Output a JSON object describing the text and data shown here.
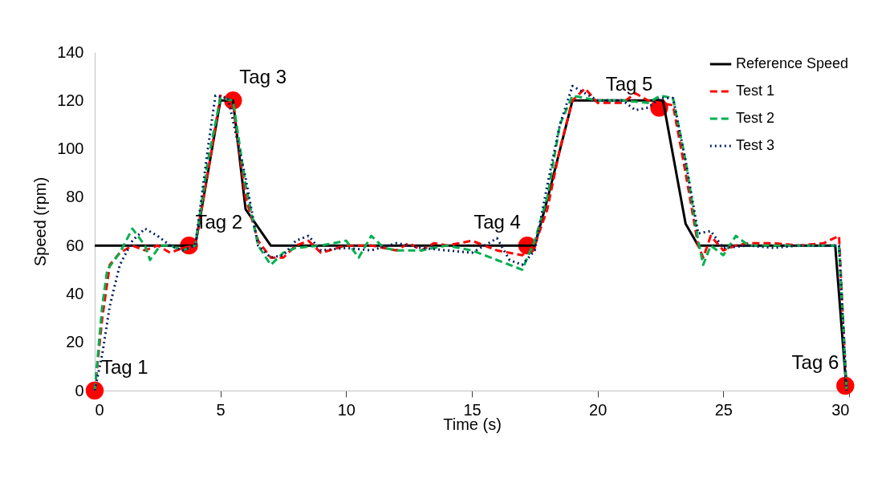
{
  "chart_data": {
    "type": "line",
    "xlabel": "Time (s)",
    "ylabel": "Speed (rpm)",
    "xlim": [
      0,
      30
    ],
    "xticks": [
      0,
      5,
      10,
      15,
      20,
      25,
      30
    ],
    "ylim": [
      0,
      140
    ],
    "yticks": [
      0,
      20,
      40,
      60,
      80,
      100,
      120,
      140
    ],
    "grid": false,
    "legend": "top right",
    "marker": "none",
    "series": [
      {
        "name": "Reference Speed",
        "color": "#000000",
        "line_style": "solid",
        "x": [
          0,
          4,
          5,
          5.5,
          6,
          7,
          17.5,
          18,
          19,
          22.6,
          23.5,
          24,
          29.45,
          29.9
        ],
        "values": [
          60,
          60,
          120,
          120,
          75,
          60,
          60,
          79,
          120,
          120,
          69,
          60,
          60,
          0
        ]
      },
      {
        "name": "Test 1",
        "color": "#ff0000",
        "line_style": "dashed",
        "x": [
          0,
          0.3,
          0.6,
          1,
          1.5,
          2,
          2.5,
          3,
          3.5,
          4,
          4.5,
          5,
          5.5,
          6,
          6.5,
          7,
          7.5,
          8,
          8.5,
          9,
          10,
          11,
          12,
          12.5,
          13,
          13.5,
          14,
          15,
          16,
          16.5,
          17,
          17.5,
          18,
          18.5,
          19,
          19.5,
          20,
          21,
          21.5,
          22,
          22.5,
          23,
          23.5,
          24,
          24.2,
          24.5,
          25,
          25.5,
          26,
          27,
          28,
          29,
          29.6,
          29.9
        ],
        "values": [
          0,
          30,
          52,
          57,
          60,
          58,
          60,
          57,
          59,
          60,
          90,
          122,
          119,
          80,
          62,
          55,
          55,
          60,
          62,
          57,
          60,
          60,
          58,
          61,
          58,
          61,
          60,
          62,
          58,
          57,
          56,
          60,
          75,
          100,
          120,
          125,
          119,
          119,
          123,
          120,
          119,
          118,
          90,
          60,
          55,
          64,
          58,
          60,
          61,
          61,
          60,
          61,
          64,
          0
        ]
      },
      {
        "name": "Test 2",
        "color": "#00b050",
        "line_style": "dashed",
        "x": [
          0,
          0.3,
          0.5,
          1,
          1.5,
          2,
          2.2,
          2.6,
          3,
          3.5,
          4,
          4.5,
          5,
          5.5,
          6,
          6.5,
          7,
          7.5,
          8,
          9,
          10,
          10.5,
          11,
          11.5,
          12,
          13,
          14,
          15,
          16,
          16.5,
          17,
          17.5,
          18,
          18.5,
          19,
          19.5,
          20,
          21,
          22,
          22.5,
          23,
          23.5,
          24,
          24.2,
          24.5,
          25,
          25.5,
          26,
          27,
          28,
          29,
          29.6,
          29.9
        ],
        "values": [
          0,
          35,
          50,
          57,
          67,
          60,
          54,
          60,
          60,
          58,
          60,
          95,
          121,
          120,
          85,
          60,
          52,
          57,
          59,
          60,
          62,
          55,
          64,
          59,
          58,
          58,
          60,
          58,
          54,
          52,
          50,
          62,
          80,
          110,
          122,
          121,
          120,
          120,
          119,
          122,
          121,
          95,
          62,
          52,
          60,
          56,
          64,
          60,
          60,
          60,
          60,
          60,
          0
        ]
      },
      {
        "name": "Test 3",
        "color": "#002060",
        "line_style": "dotted",
        "x": [
          0,
          0.3,
          0.6,
          1,
          1.5,
          2,
          2.5,
          3,
          3.5,
          4,
          4.5,
          4.8,
          5.3,
          6,
          6.5,
          7,
          7.5,
          8,
          8.5,
          9,
          10,
          11,
          12,
          13,
          14,
          15,
          16,
          16.5,
          17,
          17.5,
          18,
          18.5,
          19,
          19.5,
          20,
          21,
          21.5,
          22,
          22.5,
          23,
          23.5,
          24,
          24.5,
          25,
          26,
          27,
          28,
          29,
          29.6,
          29.9
        ],
        "values": [
          0,
          15,
          35,
          52,
          62,
          67,
          64,
          60,
          58,
          60,
          100,
          122,
          121,
          88,
          60,
          55,
          56,
          62,
          64,
          58,
          59,
          58,
          61,
          59,
          58,
          57,
          63,
          54,
          52,
          58,
          85,
          110,
          126,
          123,
          120,
          120,
          116,
          117,
          121,
          121,
          95,
          65,
          66,
          59,
          60,
          59,
          60,
          60,
          60,
          0
        ]
      },
      {
        "type": "scatter",
        "color": "#ff0000",
        "marker": "circle",
        "x": [
          0,
          3.75,
          5.5,
          17.2,
          22.45,
          29.85
        ],
        "values": [
          0,
          60,
          120,
          60,
          117,
          2
        ]
      }
    ],
    "annotations": [
      {
        "text": "Tag 1",
        "x": 0,
        "y": 0
      },
      {
        "text": "Tag 2",
        "x": 3.75,
        "y": 60
      },
      {
        "text": "Tag 3",
        "x": 5.5,
        "y": 120
      },
      {
        "text": "Tag 4",
        "x": 17.2,
        "y": 60
      },
      {
        "text": "Tag 5",
        "x": 22.45,
        "y": 117
      },
      {
        "text": "Tag 6",
        "x": 29.85,
        "y": 2
      }
    ]
  }
}
